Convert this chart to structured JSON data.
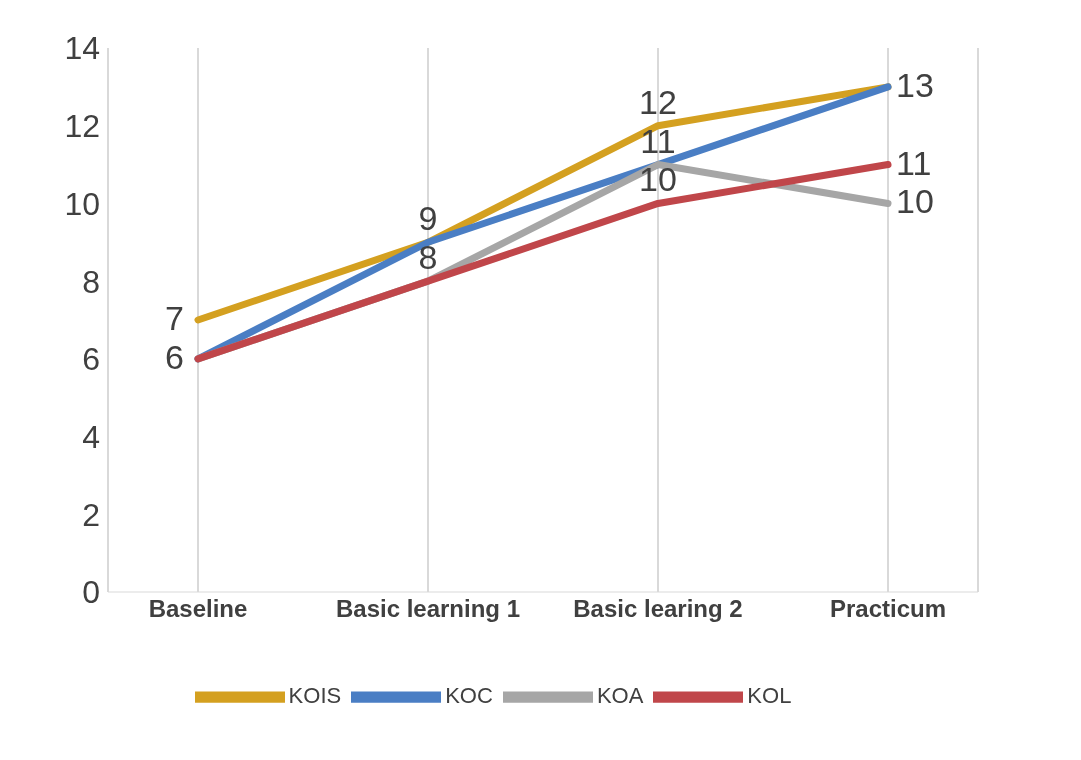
{
  "chart_data": {
    "type": "line",
    "categories": [
      "Baseline",
      "Basic learning 1",
      "Basic learing 2",
      "Practicum"
    ],
    "series": [
      {
        "name": "KOIS",
        "color": "#d4a020",
        "values": [
          7,
          9,
          12,
          13
        ],
        "value_labels": [
          "7",
          null,
          "12",
          null
        ]
      },
      {
        "name": "KOC",
        "color": "#4a7ec4",
        "values": [
          6,
          9,
          11,
          13
        ],
        "value_labels": [
          null,
          "9",
          null,
          "13"
        ]
      },
      {
        "name": "KOA",
        "color": "#a6a6a6",
        "values": [
          6,
          8,
          11,
          10
        ],
        "value_labels": [
          null,
          null,
          "11",
          "10"
        ]
      },
      {
        "name": "KOL",
        "color": "#c0464a",
        "values": [
          6,
          8,
          10,
          11
        ],
        "value_labels": [
          "6",
          "8",
          "10",
          "11"
        ]
      }
    ],
    "ylim": [
      0,
      14
    ],
    "yticks": [
      0,
      2,
      4,
      6,
      8,
      10,
      12,
      14
    ],
    "grid": "x",
    "legend": "bottom",
    "marker": "none",
    "line_style": "solid"
  }
}
